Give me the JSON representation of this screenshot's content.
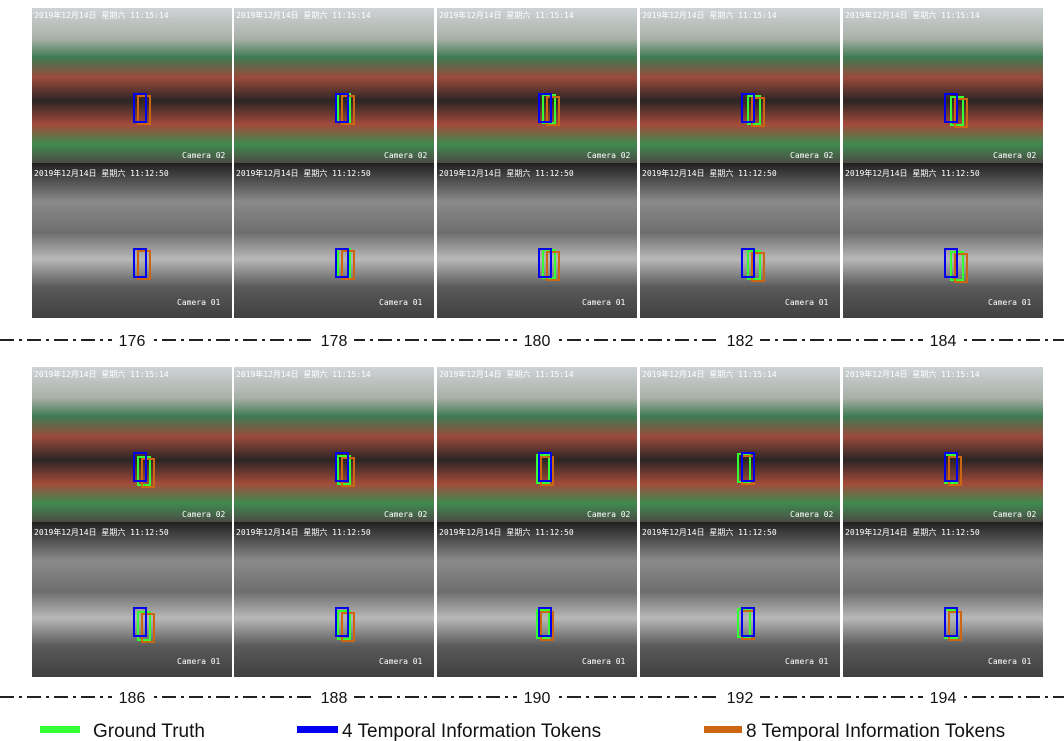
{
  "frames": [
    "176",
    "178",
    "180",
    "182",
    "184",
    "186",
    "188",
    "190",
    "192",
    "194"
  ],
  "overlay": {
    "rgb_timestamp": "2019年12月14日 星期六 11:15:14",
    "thermal_timestamp": "2019年12月14日 星期六 11:12:50",
    "rgb_camera": "Camera 02",
    "thermal_camera": "Camera 01"
  },
  "legend": [
    {
      "label": "Ground Truth",
      "color": "#33ff33"
    },
    {
      "label": "4 Temporal Information Tokens",
      "color": "#0000ee"
    },
    {
      "label": "8 Temporal Information Tokens",
      "color": "#cc6611"
    }
  ]
}
